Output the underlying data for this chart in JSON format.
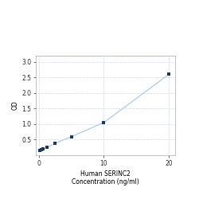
{
  "x_data": [
    0.156,
    0.3125,
    0.625,
    1.25,
    2.5,
    5,
    10,
    20
  ],
  "y_data": [
    0.158,
    0.177,
    0.202,
    0.25,
    0.38,
    0.6,
    1.05,
    2.6
  ],
  "line_color": "#aaccee",
  "marker_color": "#1a3a6b",
  "marker_size": 3.5,
  "xlabel_line1": "Human SERINC2",
  "xlabel_line2": "Concentration (ng/ml)",
  "ylabel": "OD",
  "xlim": [
    -0.5,
    21
  ],
  "ylim": [
    0.0,
    3.2
  ],
  "yticks": [
    0.5,
    1.0,
    1.5,
    2.0,
    2.5,
    3.0
  ],
  "xticks": [
    0,
    10,
    20
  ],
  "xtick_labels": [
    "0",
    "10",
    "20"
  ],
  "grid_color": "#d0d8e8",
  "background_color": "#ffffff",
  "fig_background": "#ffffff"
}
